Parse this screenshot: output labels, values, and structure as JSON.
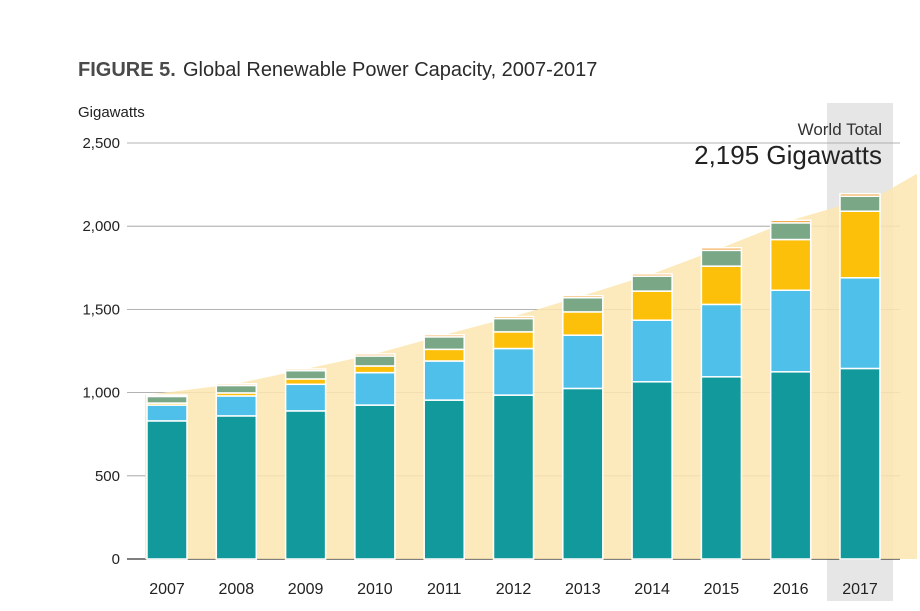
{
  "figure": {
    "label": "FIGURE 5.",
    "title": "Global Renewable Power Capacity, 2007-2017"
  },
  "annotation": {
    "label": "World Total",
    "value": "2,195 Gigawatts"
  },
  "colors": {
    "background_area": "#fbe6b0",
    "highlight_column": "#e6e6e6",
    "segments": [
      "#12999c",
      "#4ec0e9",
      "#fcc00b",
      "#7aa886",
      "#f2a038"
    ]
  },
  "chart_data": {
    "type": "bar",
    "stacked": true,
    "ylabel": "Gigawatts",
    "ylim": [
      0,
      2500
    ],
    "yticks": [
      0,
      500,
      1000,
      1500,
      2000,
      2500
    ],
    "ytick_labels": [
      "0",
      "500",
      "1,000",
      "1,500",
      "2,000",
      "2,500"
    ],
    "grid": true,
    "highlight_category": "2017",
    "categories": [
      "2007",
      "2008",
      "2009",
      "2010",
      "2011",
      "2012",
      "2013",
      "2014",
      "2015",
      "2016",
      "2017"
    ],
    "series": [
      {
        "values": [
          830,
          860,
          890,
          925,
          955,
          985,
          1025,
          1065,
          1095,
          1125,
          1145
        ]
      },
      {
        "values": [
          95,
          120,
          160,
          195,
          235,
          280,
          320,
          370,
          435,
          490,
          545
        ]
      },
      {
        "values": [
          12,
          18,
          32,
          40,
          70,
          100,
          140,
          175,
          230,
          305,
          400
        ]
      },
      {
        "values": [
          40,
          45,
          50,
          60,
          75,
          80,
          85,
          90,
          95,
          100,
          90
        ]
      },
      {
        "values": [
          8,
          10,
          10,
          12,
          12,
          12,
          12,
          13,
          15,
          15,
          15
        ]
      }
    ],
    "totals": [
      985,
      1053,
      1142,
      1232,
      1347,
      1457,
      1582,
      1713,
      1870,
      2035,
      2195
    ]
  }
}
